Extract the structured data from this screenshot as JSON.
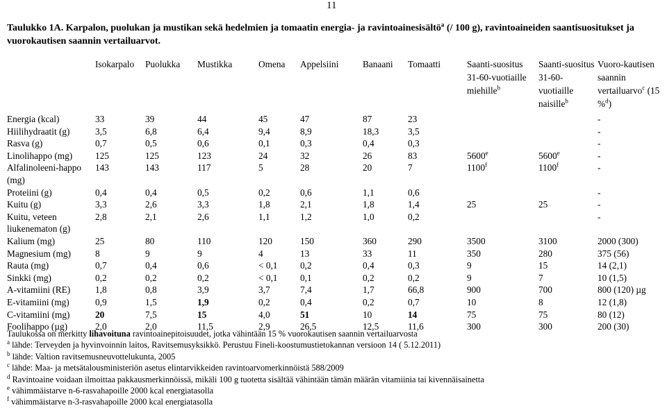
{
  "page_number": "11",
  "caption": {
    "parts": [
      {
        "text": "Taulukko 1A. Karpalon, puolukan ja mustikan sekä hedelmien ja tomaatin energia- ja ravintoainesisältö"
      },
      {
        "sup": "a"
      },
      {
        "text": " (/ 100 g), ravintoaineiden saantisuositukset ja vuorokautisen saannin vertailuarvot."
      }
    ]
  },
  "table": {
    "header": [
      null,
      "Isokarpalo",
      "Puolukka",
      "Mustikka",
      "Omena",
      "Appelsiini",
      "Banaani",
      "Tomaatti",
      {
        "parts": [
          {
            "text": "Saanti-suositus 31-60-vuotiaille miehille"
          },
          {
            "sup": "b"
          }
        ]
      },
      {
        "parts": [
          {
            "text": "Saanti-suositus 31-60-vuotiaille naisille"
          },
          {
            "sup": "b"
          }
        ]
      },
      {
        "parts": [
          {
            "text": "Vuoro-kautisen saannin vertailuarvo"
          },
          {
            "sup": "c"
          },
          {
            "text": " (15 %"
          },
          {
            "sup": "d"
          },
          {
            "text": ")"
          }
        ]
      }
    ],
    "rows": [
      [
        "Energia (kcal)",
        "33",
        "39",
        "44",
        "45",
        "47",
        "87",
        "23",
        null,
        null,
        "-"
      ],
      [
        "Hiilihydraatit (g)",
        "3,5",
        "6,8",
        "6,4",
        "9,4",
        "8,9",
        "18,3",
        "3,5",
        null,
        null,
        "-"
      ],
      [
        "Rasva (g)",
        "0,7",
        "0,5",
        "0,6",
        "0,1",
        "0,3",
        "0,4",
        "0,3",
        null,
        null,
        "-"
      ],
      [
        "Linolihappo (mg)",
        "125",
        "125",
        "123",
        "24",
        "32",
        "26",
        "83",
        {
          "parts": [
            {
              "text": "5600"
            },
            {
              "sup": "e"
            }
          ]
        },
        {
          "parts": [
            {
              "text": "5600"
            },
            {
              "sup": "e"
            }
          ]
        },
        "-"
      ],
      [
        "Alfalinoleeni-happo (mg)",
        "143",
        "143",
        "117",
        "5",
        "28",
        "20",
        "7",
        {
          "parts": [
            {
              "text": "1100"
            },
            {
              "sup": "f"
            }
          ]
        },
        {
          "parts": [
            {
              "text": "1100"
            },
            {
              "sup": "f"
            }
          ]
        },
        "-"
      ],
      [
        "Proteiini (g)",
        "0,4",
        "0,4",
        "0,5",
        "0,2",
        "0,6",
        "1,1",
        "0,6",
        null,
        null,
        "-"
      ],
      [
        "Kuitu (g)",
        "3,3",
        "2,6",
        "3,3",
        "1,8",
        "2,1",
        "1,8",
        "1,4",
        "25",
        "25",
        "-"
      ],
      [
        "Kuitu, veteen liukenematon (g)",
        "2,8",
        "2,1",
        "2,6",
        "1,1",
        "1,2",
        "1,0",
        "0,2",
        null,
        null,
        "-"
      ],
      [
        "Kalium (mg)",
        "25",
        "80",
        "110",
        "120",
        "150",
        "360",
        "290",
        "3500",
        "3100",
        "2000 (300)"
      ],
      [
        "Magnesium (mg)",
        "8",
        "9",
        "9",
        "4",
        "13",
        "33",
        "11",
        "350",
        "280",
        "375 (56)"
      ],
      [
        "Rauta (mg)",
        "0,7",
        "0,4",
        "0,6",
        "< 0,1",
        "0,2",
        "0,4",
        "0,3",
        "9",
        "15",
        "14 (2,1)"
      ],
      [
        "Sinkki (mg)",
        "0,2",
        "0,2",
        "0,2",
        "< 0,1",
        "0,1",
        "0,2",
        "0,2",
        "9",
        "7",
        "10 (1,5)"
      ],
      [
        "A-vitamiini (RE)",
        "1,8",
        "0,8",
        "3,9",
        "3,7",
        "7,4",
        "1,7",
        "66,8",
        "900",
        "700",
        "800 (120) µg"
      ],
      [
        "E-vitamiini (mg)",
        "0,9",
        "1,5",
        {
          "parts": [
            {
              "bold": "1,9"
            }
          ]
        },
        "0,2",
        "0,4",
        "0,2",
        "0,7",
        "10",
        "8",
        "12 (1,8)"
      ],
      [
        "C-vitamiini (mg)",
        {
          "parts": [
            {
              "bold": "20"
            }
          ]
        },
        "7,5",
        {
          "parts": [
            {
              "bold": "15"
            }
          ]
        },
        "4,0",
        {
          "parts": [
            {
              "bold": "51"
            }
          ]
        },
        "10",
        {
          "parts": [
            {
              "bold": "14"
            }
          ]
        },
        "75",
        "75",
        "80 (12)"
      ],
      [
        "Foolihappo (µg)",
        "2,0",
        "2,0",
        "11,5",
        "2,9",
        "26,5",
        "12,5",
        "11,6",
        "300",
        "300",
        "200 (30)"
      ]
    ]
  },
  "footnotes": [
    {
      "parts": [
        {
          "text": "Taulukossa on merkitty "
        },
        {
          "bold": "lihavoituna"
        },
        {
          "text": " ravintoainepitoisuudet, jotka vähintään 15 % vuorokautisen saannin vertailuarvosta"
        }
      ]
    },
    {
      "parts": [
        {
          "sup": "a"
        },
        {
          "text": " lähde: Terveyden ja hyvinvoinnin laitos, Ravitsemusyksikkö. Perustuu Fineli-koostumustietokannan versioon 14 ( 5.12.2011)"
        }
      ]
    },
    {
      "parts": [
        {
          "sup": "b"
        },
        {
          "text": " lähde: Valtion ravitsemusneuvottelukunta, 2005"
        }
      ]
    },
    {
      "parts": [
        {
          "sup": "c"
        },
        {
          "text": " lähde: Maa- ja metsätalousministeriön asetus elintarvikkeiden ravintoarvomerkinnöistä 588/2009"
        }
      ]
    },
    {
      "parts": [
        {
          "sup": "d"
        },
        {
          "text": " Ravintoaine voidaan ilmoittaa pakkausmerkinnöissä, mikäli 100 g tuotetta sisältää vähintään tämän määrän vitamiinia tai kivennäisainetta"
        }
      ]
    },
    {
      "parts": [
        {
          "sup": "e"
        },
        {
          "text": " vähimmäistarve n-6-rasvahapoille 2000 kcal energiatasolla"
        }
      ]
    },
    {
      "parts": [
        {
          "sup": "f"
        },
        {
          "text": " vähimmäistarve n-3-rasvahapoille 2000 kcal energiatasolla"
        }
      ]
    }
  ]
}
